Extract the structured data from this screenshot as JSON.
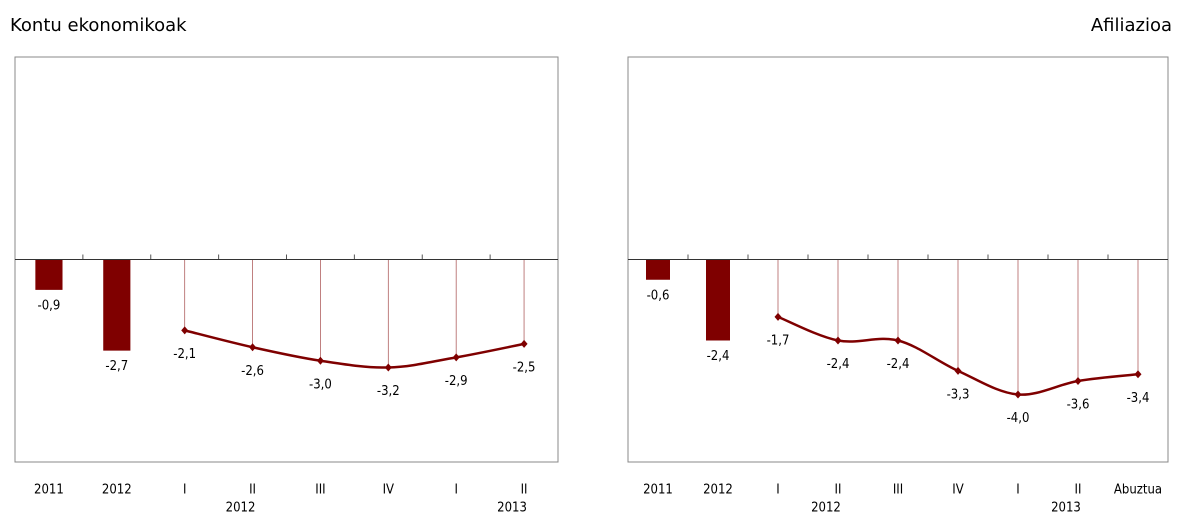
{
  "chart_data": [
    {
      "type": "combo",
      "title": "Kontu ekonomikoak",
      "categories": [
        "2011",
        "2012",
        "I",
        "II",
        "III",
        "IV",
        "I",
        "II"
      ],
      "sublabels": [
        null,
        null,
        null,
        "2012",
        null,
        null,
        null,
        "2013"
      ],
      "ylim": [
        -6,
        6
      ],
      "series": [
        {
          "type": "bar",
          "color": "#7f0000",
          "values": [
            -0.9,
            -2.7,
            null,
            null,
            null,
            null,
            null,
            null
          ],
          "value_labels": [
            "-0,9",
            "-2,7",
            null,
            null,
            null,
            null,
            null,
            null
          ]
        },
        {
          "type": "line",
          "color": "#7f0000",
          "values": [
            null,
            null,
            -2.1,
            -2.6,
            -3.0,
            -3.2,
            -2.9,
            -2.5
          ],
          "value_labels": [
            null,
            null,
            "-2,1",
            "-2,6",
            "-3,0",
            "-3,2",
            "-2,9",
            "-2,5"
          ]
        }
      ]
    },
    {
      "type": "combo",
      "title": "Afiliazioa",
      "categories": [
        "2011",
        "2012",
        "I",
        "II",
        "III",
        "IV",
        "I",
        "II",
        "Abuztua"
      ],
      "sublabels": [
        null,
        null,
        null,
        "2012",
        null,
        null,
        null,
        "2013",
        null
      ],
      "ylim": [
        -6,
        6
      ],
      "series": [
        {
          "type": "bar",
          "color": "#7f0000",
          "values": [
            -0.6,
            -2.4,
            null,
            null,
            null,
            null,
            null,
            null,
            null
          ],
          "value_labels": [
            "-0,6",
            "-2,4",
            null,
            null,
            null,
            null,
            null,
            null,
            null
          ]
        },
        {
          "type": "line",
          "color": "#7f0000",
          "values": [
            null,
            null,
            -1.7,
            -2.4,
            -2.4,
            -3.3,
            -4.0,
            -3.6,
            -3.4
          ],
          "value_labels": [
            null,
            null,
            "-1,7",
            "-2,4",
            "-2,4",
            "-3,3",
            "-4,0",
            "-3,6",
            "-3,4"
          ]
        }
      ]
    }
  ]
}
